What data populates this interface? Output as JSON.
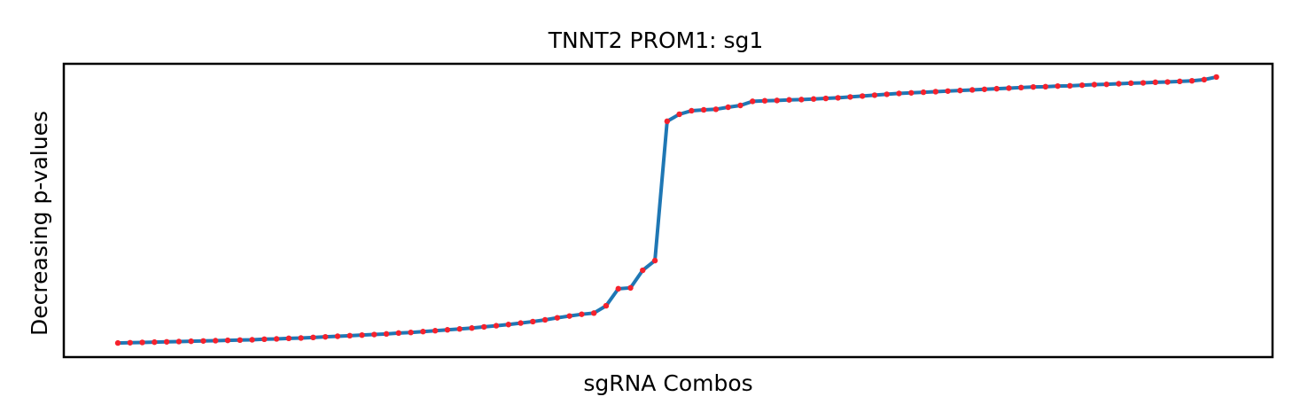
{
  "chart_data": {
    "type": "line",
    "title": "TNNT2 PROM1: sg1",
    "x_label": "sgRNA Combos",
    "y_label": "Decreasing p-values",
    "x": [
      0,
      1,
      2,
      3,
      4,
      5,
      6,
      7,
      8,
      9,
      10,
      11,
      12,
      13,
      14,
      15,
      16,
      17,
      18,
      19,
      20,
      21,
      22,
      23,
      24,
      25,
      26,
      27,
      28,
      29,
      30,
      31,
      32,
      33,
      34,
      35,
      36,
      37,
      38,
      39,
      40,
      41,
      42,
      43,
      44,
      45,
      46,
      47,
      48,
      49,
      50,
      51,
      52,
      53,
      54,
      55,
      56,
      57,
      58,
      59,
      60,
      61,
      62,
      63,
      64,
      65,
      66,
      67,
      68,
      69,
      70,
      71,
      72,
      73,
      74,
      75,
      76,
      77,
      78,
      79,
      80,
      81,
      82,
      83,
      84,
      85,
      86,
      87,
      88,
      89,
      90
    ],
    "series": [
      {
        "color": "#1f77b4",
        "marker_color": "#f5222d",
        "values": [
          0.048,
          0.049,
          0.05,
          0.051,
          0.052,
          0.053,
          0.054,
          0.055,
          0.056,
          0.057,
          0.058,
          0.059,
          0.061,
          0.062,
          0.064,
          0.065,
          0.067,
          0.069,
          0.071,
          0.073,
          0.075,
          0.077,
          0.079,
          0.082,
          0.084,
          0.087,
          0.09,
          0.093,
          0.096,
          0.099,
          0.103,
          0.107,
          0.111,
          0.116,
          0.121,
          0.127,
          0.134,
          0.14,
          0.146,
          0.15,
          0.175,
          0.233,
          0.236,
          0.296,
          0.329,
          0.804,
          0.828,
          0.84,
          0.843,
          0.845,
          0.852,
          0.858,
          0.872,
          0.874,
          0.875,
          0.877,
          0.878,
          0.88,
          0.882,
          0.884,
          0.887,
          0.89,
          0.893,
          0.896,
          0.899,
          0.901,
          0.903,
          0.905,
          0.907,
          0.909,
          0.911,
          0.913,
          0.915,
          0.917,
          0.919,
          0.921,
          0.922,
          0.924,
          0.925,
          0.927,
          0.929,
          0.93,
          0.932,
          0.934,
          0.935,
          0.937,
          0.938,
          0.94,
          0.942,
          0.946,
          0.955
        ]
      }
    ],
    "xlim": [
      -4.43,
      94.6
    ],
    "ylim": [
      0,
      1
    ]
  }
}
